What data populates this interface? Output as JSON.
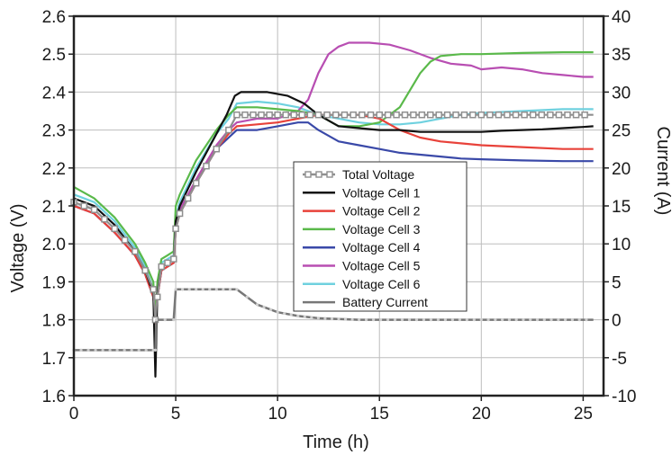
{
  "chart_data": {
    "type": "line",
    "title": "",
    "xlabel": "Time (h)",
    "ylabel_left": "Voltage (V)",
    "ylabel_right": "Current (A)",
    "xlim": [
      0,
      26
    ],
    "ylim_left": [
      1.6,
      2.6
    ],
    "ylim_right": [
      -10,
      40
    ],
    "x_ticks": [
      "0",
      "5",
      "10",
      "15",
      "20",
      "25"
    ],
    "y_ticks_left": [
      "1.6",
      "1.7",
      "1.8",
      "1.9",
      "2.0",
      "2.1",
      "2.2",
      "2.3",
      "2.4",
      "2.5",
      "2.6"
    ],
    "y_ticks_right": [
      "-10",
      "-5",
      "0",
      "5",
      "10",
      "15",
      "20",
      "25",
      "30",
      "35",
      "40"
    ],
    "grid": true,
    "legend_position": "center-right",
    "series": [
      {
        "name": "Total Voltage",
        "color": "#8f8f8f",
        "axis": "left",
        "marker": "square",
        "points": [
          [
            0,
            2.11
          ],
          [
            1,
            2.09
          ],
          [
            2,
            2.04
          ],
          [
            3,
            1.98
          ],
          [
            3.5,
            1.93
          ],
          [
            3.9,
            1.88
          ],
          [
            4.0,
            1.8
          ],
          [
            4.1,
            1.86
          ],
          [
            4.3,
            1.94
          ],
          [
            4.6,
            1.95
          ],
          [
            4.9,
            1.96
          ],
          [
            5.0,
            2.04
          ],
          [
            5.2,
            2.08
          ],
          [
            6.0,
            2.16
          ],
          [
            7.0,
            2.25
          ],
          [
            7.6,
            2.3
          ],
          [
            8.0,
            2.34
          ],
          [
            10,
            2.34
          ],
          [
            12,
            2.34
          ],
          [
            15,
            2.34
          ],
          [
            20,
            2.34
          ],
          [
            25.5,
            2.34
          ]
        ]
      },
      {
        "name": "Voltage Cell 1",
        "color": "#111111",
        "axis": "left",
        "points": [
          [
            0,
            2.12
          ],
          [
            1,
            2.1
          ],
          [
            2,
            2.05
          ],
          [
            3,
            1.98
          ],
          [
            3.5,
            1.93
          ],
          [
            3.9,
            1.87
          ],
          [
            4.0,
            1.65
          ],
          [
            4.1,
            1.87
          ],
          [
            4.3,
            1.94
          ],
          [
            4.6,
            1.95
          ],
          [
            4.9,
            1.96
          ],
          [
            5.0,
            2.06
          ],
          [
            5.2,
            2.1
          ],
          [
            6.0,
            2.19
          ],
          [
            7.0,
            2.29
          ],
          [
            7.5,
            2.34
          ],
          [
            7.9,
            2.39
          ],
          [
            8.2,
            2.4
          ],
          [
            9.5,
            2.4
          ],
          [
            10.5,
            2.39
          ],
          [
            11.3,
            2.37
          ],
          [
            12,
            2.34
          ],
          [
            13,
            2.31
          ],
          [
            14,
            2.305
          ],
          [
            15,
            2.3
          ],
          [
            16,
            2.3
          ],
          [
            17,
            2.295
          ],
          [
            18,
            2.295
          ],
          [
            19,
            2.295
          ],
          [
            20,
            2.295
          ],
          [
            21,
            2.298
          ],
          [
            22,
            2.3
          ],
          [
            23,
            2.302
          ],
          [
            24,
            2.305
          ],
          [
            25,
            2.308
          ],
          [
            25.5,
            2.31
          ]
        ]
      },
      {
        "name": "Voltage Cell 2",
        "color": "#e8423a",
        "axis": "left",
        "points": [
          [
            0,
            2.1
          ],
          [
            1,
            2.08
          ],
          [
            2,
            2.03
          ],
          [
            3,
            1.97
          ],
          [
            3.5,
            1.92
          ],
          [
            3.9,
            1.86
          ],
          [
            4.0,
            1.79
          ],
          [
            4.1,
            1.86
          ],
          [
            4.3,
            1.93
          ],
          [
            4.6,
            1.94
          ],
          [
            4.9,
            1.95
          ],
          [
            5.0,
            2.04
          ],
          [
            5.2,
            2.08
          ],
          [
            6.0,
            2.16
          ],
          [
            7.0,
            2.25
          ],
          [
            7.6,
            2.29
          ],
          [
            8.0,
            2.31
          ],
          [
            9,
            2.315
          ],
          [
            10,
            2.32
          ],
          [
            11,
            2.33
          ],
          [
            12,
            2.34
          ],
          [
            13,
            2.34
          ],
          [
            14,
            2.34
          ],
          [
            15,
            2.33
          ],
          [
            16,
            2.3
          ],
          [
            17,
            2.28
          ],
          [
            18,
            2.27
          ],
          [
            19,
            2.265
          ],
          [
            20,
            2.26
          ],
          [
            22,
            2.255
          ],
          [
            24,
            2.25
          ],
          [
            25.5,
            2.25
          ]
        ]
      },
      {
        "name": "Voltage Cell 3",
        "color": "#5ab94a",
        "axis": "left",
        "points": [
          [
            0,
            2.15
          ],
          [
            1,
            2.12
          ],
          [
            2,
            2.07
          ],
          [
            3,
            2.0
          ],
          [
            3.5,
            1.95
          ],
          [
            3.9,
            1.9
          ],
          [
            4.0,
            1.8
          ],
          [
            4.1,
            1.9
          ],
          [
            4.3,
            1.96
          ],
          [
            4.6,
            1.97
          ],
          [
            4.9,
            1.98
          ],
          [
            5.0,
            2.1
          ],
          [
            5.2,
            2.13
          ],
          [
            6.0,
            2.22
          ],
          [
            7.0,
            2.3
          ],
          [
            7.6,
            2.34
          ],
          [
            8.0,
            2.36
          ],
          [
            9,
            2.36
          ],
          [
            10,
            2.355
          ],
          [
            11,
            2.35
          ],
          [
            12,
            2.34
          ],
          [
            13,
            2.31
          ],
          [
            14,
            2.31
          ],
          [
            15,
            2.32
          ],
          [
            16,
            2.36
          ],
          [
            17,
            2.45
          ],
          [
            17.5,
            2.48
          ],
          [
            18,
            2.495
          ],
          [
            19,
            2.5
          ],
          [
            20,
            2.5
          ],
          [
            22,
            2.503
          ],
          [
            24,
            2.505
          ],
          [
            25.5,
            2.505
          ]
        ]
      },
      {
        "name": "Voltage Cell 4",
        "color": "#3a49a8",
        "axis": "left",
        "points": [
          [
            0,
            2.1
          ],
          [
            1,
            2.08
          ],
          [
            2,
            2.03
          ],
          [
            3,
            1.97
          ],
          [
            3.5,
            1.92
          ],
          [
            3.9,
            1.86
          ],
          [
            4.0,
            1.8
          ],
          [
            4.1,
            1.86
          ],
          [
            4.3,
            1.93
          ],
          [
            4.6,
            1.94
          ],
          [
            4.9,
            1.95
          ],
          [
            5.0,
            2.04
          ],
          [
            5.2,
            2.08
          ],
          [
            6.0,
            2.16
          ],
          [
            7.0,
            2.25
          ],
          [
            7.6,
            2.28
          ],
          [
            8.0,
            2.3
          ],
          [
            9,
            2.3
          ],
          [
            10,
            2.31
          ],
          [
            11,
            2.32
          ],
          [
            11.5,
            2.32
          ],
          [
            12,
            2.3
          ],
          [
            13,
            2.27
          ],
          [
            14,
            2.26
          ],
          [
            15,
            2.25
          ],
          [
            16,
            2.24
          ],
          [
            17,
            2.235
          ],
          [
            18,
            2.23
          ],
          [
            19,
            2.225
          ],
          [
            20,
            2.223
          ],
          [
            22,
            2.22
          ],
          [
            24,
            2.218
          ],
          [
            25.5,
            2.218
          ]
        ]
      },
      {
        "name": "Voltage Cell 5",
        "color": "#b84eb2",
        "axis": "left",
        "points": [
          [
            0,
            2.1
          ],
          [
            1,
            2.08
          ],
          [
            2,
            2.03
          ],
          [
            3,
            1.97
          ],
          [
            3.5,
            1.92
          ],
          [
            3.9,
            1.86
          ],
          [
            4.0,
            1.8
          ],
          [
            4.1,
            1.86
          ],
          [
            4.3,
            1.93
          ],
          [
            4.6,
            1.94
          ],
          [
            4.9,
            1.95
          ],
          [
            5.0,
            2.05
          ],
          [
            5.2,
            2.09
          ],
          [
            6.0,
            2.17
          ],
          [
            7.0,
            2.26
          ],
          [
            7.6,
            2.3
          ],
          [
            8.0,
            2.32
          ],
          [
            9,
            2.33
          ],
          [
            10,
            2.33
          ],
          [
            10.5,
            2.34
          ],
          [
            11,
            2.35
          ],
          [
            11.5,
            2.38
          ],
          [
            12,
            2.45
          ],
          [
            12.5,
            2.5
          ],
          [
            13,
            2.52
          ],
          [
            13.5,
            2.53
          ],
          [
            14.5,
            2.53
          ],
          [
            15.5,
            2.525
          ],
          [
            16.5,
            2.51
          ],
          [
            17.5,
            2.49
          ],
          [
            18.5,
            2.475
          ],
          [
            19.5,
            2.47
          ],
          [
            20,
            2.46
          ],
          [
            21,
            2.465
          ],
          [
            22,
            2.46
          ],
          [
            23,
            2.45
          ],
          [
            24,
            2.445
          ],
          [
            25,
            2.44
          ],
          [
            25.5,
            2.44
          ]
        ]
      },
      {
        "name": "Voltage Cell 6",
        "color": "#6fd1df",
        "axis": "left",
        "points": [
          [
            0,
            2.13
          ],
          [
            1,
            2.11
          ],
          [
            2,
            2.06
          ],
          [
            3,
            1.99
          ],
          [
            3.5,
            1.94
          ],
          [
            3.9,
            1.88
          ],
          [
            4.0,
            1.8
          ],
          [
            4.1,
            1.88
          ],
          [
            4.3,
            1.95
          ],
          [
            4.6,
            1.96
          ],
          [
            4.9,
            1.97
          ],
          [
            5.0,
            2.07
          ],
          [
            5.2,
            2.11
          ],
          [
            6.0,
            2.2
          ],
          [
            7.0,
            2.29
          ],
          [
            7.6,
            2.33
          ],
          [
            8.0,
            2.37
          ],
          [
            9,
            2.375
          ],
          [
            10,
            2.37
          ],
          [
            11,
            2.36
          ],
          [
            12,
            2.34
          ],
          [
            13,
            2.33
          ],
          [
            14,
            2.32
          ],
          [
            15,
            2.315
          ],
          [
            16,
            2.315
          ],
          [
            17,
            2.32
          ],
          [
            18,
            2.33
          ],
          [
            19,
            2.34
          ],
          [
            20,
            2.345
          ],
          [
            22,
            2.35
          ],
          [
            24,
            2.355
          ],
          [
            25.5,
            2.355
          ]
        ]
      },
      {
        "name": "Battery Current",
        "color": "#777777",
        "axis": "right",
        "marker": "dot",
        "points": [
          [
            0,
            -4
          ],
          [
            3.9,
            -4
          ],
          [
            4.0,
            -4
          ],
          [
            4.05,
            0
          ],
          [
            4.9,
            0
          ],
          [
            5.0,
            4
          ],
          [
            8.0,
            4
          ],
          [
            8.5,
            3
          ],
          [
            9,
            2
          ],
          [
            10,
            1
          ],
          [
            11,
            0.5
          ],
          [
            12,
            0.2
          ],
          [
            14,
            0
          ],
          [
            20,
            0
          ],
          [
            25.5,
            0
          ]
        ]
      }
    ]
  }
}
